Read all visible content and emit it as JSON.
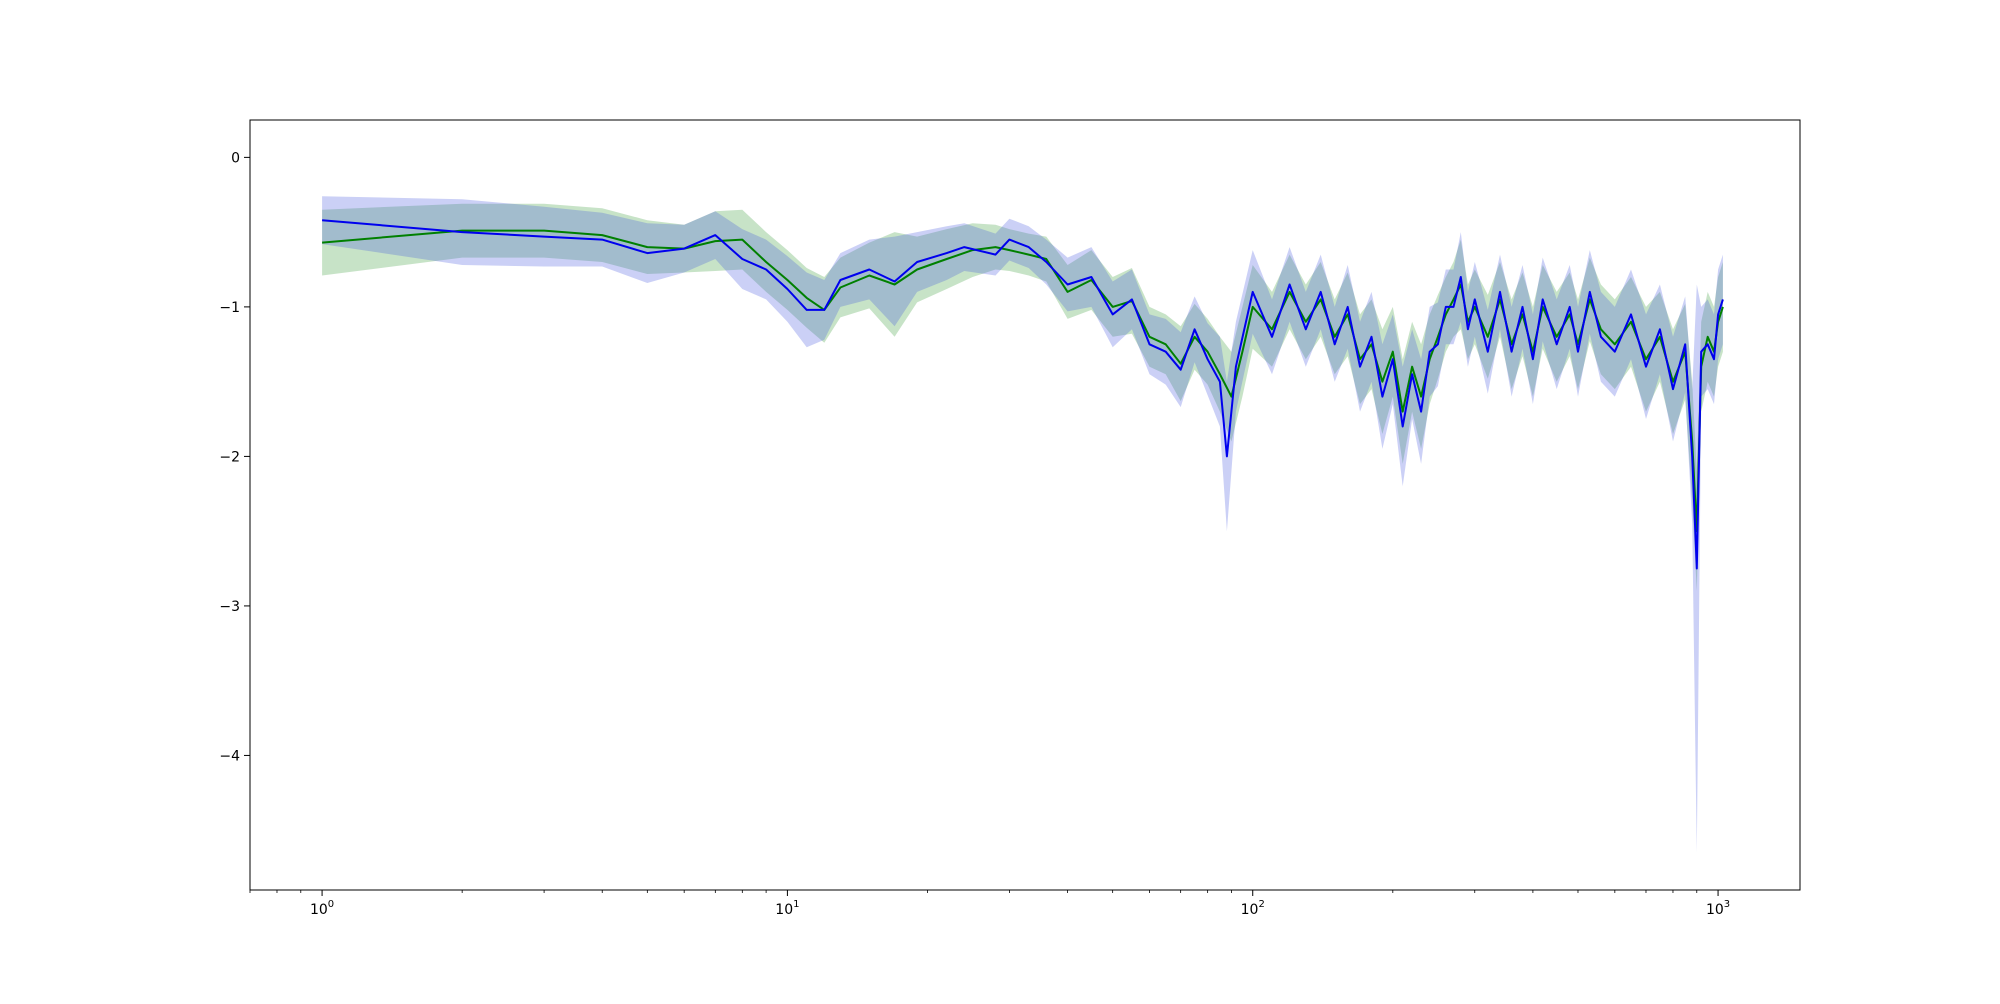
{
  "chart_data": {
    "type": "line",
    "title": "",
    "xlabel": "",
    "ylabel": "",
    "xscale": "log",
    "xlim": [
      0.7,
      1500
    ],
    "ylim": [
      -4.9,
      0.25
    ],
    "grid": false,
    "legend": "none",
    "x_ticks": [
      {
        "value": 1,
        "base": "10",
        "exp": "0"
      },
      {
        "value": 10,
        "base": "10",
        "exp": "1"
      },
      {
        "value": 100,
        "base": "10",
        "exp": "2"
      },
      {
        "value": 1000,
        "base": "10",
        "exp": "3"
      }
    ],
    "y_ticks": [
      {
        "value": 0,
        "label": "0"
      },
      {
        "value": -1,
        "label": "−1"
      },
      {
        "value": -2,
        "label": "−2"
      },
      {
        "value": -3,
        "label": "−3"
      },
      {
        "value": -4,
        "label": "−4"
      }
    ],
    "series": [
      {
        "color": "#008000",
        "band_color": "#008000",
        "points": [
          [
            1,
            -0.57
          ],
          [
            2,
            -0.49
          ],
          [
            3,
            -0.49
          ],
          [
            4,
            -0.52
          ],
          [
            5,
            -0.6
          ],
          [
            6,
            -0.61
          ],
          [
            7,
            -0.56
          ],
          [
            8,
            -0.55
          ],
          [
            9,
            -0.7
          ],
          [
            10,
            -0.82
          ],
          [
            11,
            -0.94
          ],
          [
            12,
            -1.02
          ],
          [
            13,
            -0.87
          ],
          [
            15,
            -0.79
          ],
          [
            17,
            -0.85
          ],
          [
            19,
            -0.75
          ],
          [
            22,
            -0.68
          ],
          [
            25,
            -0.62
          ],
          [
            28,
            -0.6
          ],
          [
            30,
            -0.62
          ],
          [
            33,
            -0.65
          ],
          [
            36,
            -0.68
          ],
          [
            40,
            -0.9
          ],
          [
            45,
            -0.82
          ],
          [
            50,
            -1.0
          ],
          [
            55,
            -0.96
          ],
          [
            60,
            -1.2
          ],
          [
            65,
            -1.25
          ],
          [
            70,
            -1.38
          ],
          [
            75,
            -1.2
          ],
          [
            80,
            -1.3
          ],
          [
            85,
            -1.45
          ],
          [
            90,
            -1.6
          ],
          [
            95,
            -1.3
          ],
          [
            100,
            -1.0
          ],
          [
            110,
            -1.15
          ],
          [
            120,
            -0.9
          ],
          [
            130,
            -1.1
          ],
          [
            140,
            -0.95
          ],
          [
            150,
            -1.2
          ],
          [
            160,
            -1.05
          ],
          [
            170,
            -1.35
          ],
          [
            180,
            -1.25
          ],
          [
            190,
            -1.5
          ],
          [
            200,
            -1.3
          ],
          [
            210,
            -1.7
          ],
          [
            220,
            -1.4
          ],
          [
            230,
            -1.6
          ],
          [
            240,
            -1.35
          ],
          [
            250,
            -1.2
          ],
          [
            260,
            -1.05
          ],
          [
            270,
            -0.95
          ],
          [
            280,
            -0.85
          ],
          [
            290,
            -1.1
          ],
          [
            300,
            -1.0
          ],
          [
            320,
            -1.2
          ],
          [
            340,
            -0.95
          ],
          [
            360,
            -1.25
          ],
          [
            380,
            -1.05
          ],
          [
            400,
            -1.3
          ],
          [
            420,
            -1.0
          ],
          [
            450,
            -1.2
          ],
          [
            480,
            -1.05
          ],
          [
            500,
            -1.25
          ],
          [
            530,
            -0.95
          ],
          [
            560,
            -1.15
          ],
          [
            600,
            -1.25
          ],
          [
            650,
            -1.1
          ],
          [
            700,
            -1.35
          ],
          [
            750,
            -1.2
          ],
          [
            800,
            -1.5
          ],
          [
            850,
            -1.3
          ],
          [
            880,
            -1.9
          ],
          [
            900,
            -2.5
          ],
          [
            920,
            -1.4
          ],
          [
            950,
            -1.2
          ],
          [
            980,
            -1.3
          ],
          [
            1000,
            -1.1
          ],
          [
            1024,
            -1.0
          ]
        ],
        "band_halfwidth": [
          0.22,
          0.18,
          0.18,
          0.18,
          0.18,
          0.16,
          0.2,
          0.2,
          0.2,
          0.2,
          0.2,
          0.22,
          0.2,
          0.22,
          0.35,
          0.22,
          0.2,
          0.18,
          0.15,
          0.14,
          0.14,
          0.15,
          0.18,
          0.2,
          0.2,
          0.22,
          0.2,
          0.2,
          0.25,
          0.22,
          0.22,
          0.25,
          0.3,
          0.3,
          0.28,
          0.25,
          0.25,
          0.25,
          0.25,
          0.25,
          0.28,
          0.3,
          0.3,
          0.35,
          0.3,
          0.35,
          0.3,
          0.35,
          0.3,
          0.28,
          0.25,
          0.25,
          0.3,
          0.25,
          0.25,
          0.28,
          0.25,
          0.3,
          0.28,
          0.3,
          0.28,
          0.3,
          0.28,
          0.3,
          0.28,
          0.3,
          0.3,
          0.3,
          0.35,
          0.3,
          0.35,
          0.32,
          0.4,
          0.4,
          0.3,
          0.3,
          0.3,
          0.3,
          0.3
        ]
      },
      {
        "color": "#0000ee",
        "band_color": "#4455dd",
        "points": [
          [
            1,
            -0.42
          ],
          [
            2,
            -0.5
          ],
          [
            3,
            -0.53
          ],
          [
            4,
            -0.55
          ],
          [
            5,
            -0.64
          ],
          [
            6,
            -0.61
          ],
          [
            7,
            -0.52
          ],
          [
            8,
            -0.68
          ],
          [
            9,
            -0.75
          ],
          [
            10,
            -0.88
          ],
          [
            11,
            -1.02
          ],
          [
            12,
            -1.02
          ],
          [
            13,
            -0.82
          ],
          [
            15,
            -0.75
          ],
          [
            17,
            -0.83
          ],
          [
            19,
            -0.7
          ],
          [
            22,
            -0.64
          ],
          [
            24,
            -0.6
          ],
          [
            28,
            -0.65
          ],
          [
            30,
            -0.55
          ],
          [
            33,
            -0.6
          ],
          [
            36,
            -0.7
          ],
          [
            40,
            -0.85
          ],
          [
            45,
            -0.8
          ],
          [
            50,
            -1.05
          ],
          [
            55,
            -0.95
          ],
          [
            60,
            -1.25
          ],
          [
            65,
            -1.3
          ],
          [
            70,
            -1.42
          ],
          [
            75,
            -1.15
          ],
          [
            80,
            -1.35
          ],
          [
            85,
            -1.5
          ],
          [
            88,
            -2.0
          ],
          [
            92,
            -1.4
          ],
          [
            100,
            -0.9
          ],
          [
            110,
            -1.2
          ],
          [
            120,
            -0.85
          ],
          [
            130,
            -1.15
          ],
          [
            140,
            -0.9
          ],
          [
            150,
            -1.25
          ],
          [
            160,
            -1.0
          ],
          [
            170,
            -1.4
          ],
          [
            180,
            -1.2
          ],
          [
            190,
            -1.6
          ],
          [
            200,
            -1.35
          ],
          [
            210,
            -1.8
          ],
          [
            220,
            -1.45
          ],
          [
            230,
            -1.7
          ],
          [
            240,
            -1.3
          ],
          [
            250,
            -1.25
          ],
          [
            260,
            -1.0
          ],
          [
            270,
            -1.0
          ],
          [
            280,
            -0.8
          ],
          [
            290,
            -1.15
          ],
          [
            300,
            -0.95
          ],
          [
            320,
            -1.3
          ],
          [
            340,
            -0.9
          ],
          [
            360,
            -1.3
          ],
          [
            380,
            -1.0
          ],
          [
            400,
            -1.35
          ],
          [
            420,
            -0.95
          ],
          [
            450,
            -1.25
          ],
          [
            480,
            -1.0
          ],
          [
            500,
            -1.3
          ],
          [
            530,
            -0.9
          ],
          [
            560,
            -1.2
          ],
          [
            600,
            -1.3
          ],
          [
            650,
            -1.05
          ],
          [
            700,
            -1.4
          ],
          [
            750,
            -1.15
          ],
          [
            800,
            -1.55
          ],
          [
            850,
            -1.25
          ],
          [
            880,
            -2.0
          ],
          [
            900,
            -2.75
          ],
          [
            920,
            -1.3
          ],
          [
            950,
            -1.25
          ],
          [
            980,
            -1.35
          ],
          [
            1000,
            -1.05
          ],
          [
            1024,
            -0.95
          ]
        ],
        "band_halfwidth": [
          0.16,
          0.22,
          0.2,
          0.18,
          0.2,
          0.16,
          0.16,
          0.2,
          0.2,
          0.22,
          0.25,
          0.2,
          0.18,
          0.2,
          0.3,
          0.2,
          0.18,
          0.16,
          0.14,
          0.14,
          0.14,
          0.15,
          0.18,
          0.2,
          0.22,
          0.2,
          0.2,
          0.22,
          0.25,
          0.22,
          0.24,
          0.3,
          0.5,
          0.3,
          0.28,
          0.25,
          0.25,
          0.25,
          0.25,
          0.25,
          0.28,
          0.3,
          0.3,
          0.35,
          0.3,
          0.4,
          0.3,
          0.35,
          0.3,
          0.28,
          0.25,
          0.25,
          0.3,
          0.25,
          0.25,
          0.28,
          0.25,
          0.3,
          0.28,
          0.3,
          0.28,
          0.3,
          0.28,
          0.3,
          0.28,
          0.3,
          0.3,
          0.3,
          0.35,
          0.3,
          0.35,
          0.32,
          0.45,
          1.9,
          0.3,
          0.3,
          0.3,
          0.3,
          0.3
        ]
      }
    ]
  }
}
